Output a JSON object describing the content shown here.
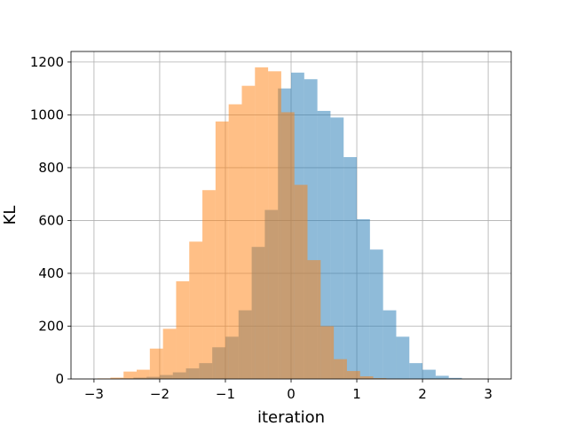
{
  "chart_data": {
    "type": "bar",
    "xlabel": "iteration",
    "ylabel": "KL",
    "xlim": [
      -3.35,
      3.35
    ],
    "ylim": [
      0,
      1240
    ],
    "x_ticks": [
      -3,
      -2,
      -1,
      0,
      1,
      2,
      3
    ],
    "x_tick_labels": [
      "−3",
      "−2",
      "−1",
      "0",
      "1",
      "2",
      "3"
    ],
    "y_ticks": [
      0,
      200,
      400,
      600,
      800,
      1000,
      1200
    ],
    "y_tick_labels": [
      "0",
      "200",
      "400",
      "600",
      "800",
      "1000",
      "1200"
    ],
    "grid": true,
    "series": [
      {
        "color": "#1f77b4",
        "opacity": 0.5,
        "bin_edges": [
          -2.6,
          -2.4,
          -2.2,
          -2.0,
          -1.8,
          -1.6,
          -1.4,
          -1.2,
          -1.0,
          -0.8,
          -0.6,
          -0.4,
          -0.2,
          0.0,
          0.2,
          0.4,
          0.6,
          0.8,
          1.0,
          1.2,
          1.4,
          1.6,
          1.8,
          2.0,
          2.2,
          2.4,
          2.6
        ],
        "values": [
          2,
          5,
          8,
          15,
          25,
          40,
          60,
          120,
          160,
          260,
          500,
          640,
          1100,
          1160,
          1135,
          1015,
          990,
          840,
          605,
          490,
          260,
          160,
          60,
          35,
          12,
          4
        ]
      },
      {
        "color": "#ff7f0e",
        "opacity": 0.5,
        "bin_edges": [
          -2.95,
          -2.75,
          -2.55,
          -2.35,
          -2.15,
          -1.95,
          -1.75,
          -1.55,
          -1.35,
          -1.15,
          -0.95,
          -0.75,
          -0.55,
          -0.35,
          -0.15,
          0.05,
          0.25,
          0.45,
          0.65,
          0.85,
          1.05,
          1.25,
          1.45,
          1.65
        ],
        "values": [
          2,
          5,
          28,
          35,
          115,
          190,
          370,
          520,
          715,
          975,
          1040,
          1110,
          1180,
          1165,
          1010,
          735,
          450,
          200,
          75,
          30,
          10,
          3,
          1
        ]
      }
    ]
  }
}
